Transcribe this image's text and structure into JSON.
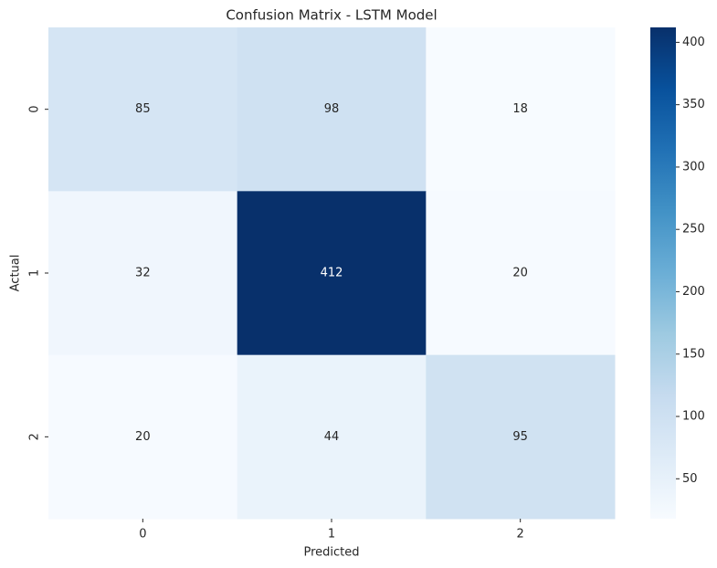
{
  "chart_data": {
    "type": "heatmap",
    "title": "Confusion Matrix - LSTM Model",
    "xlabel": "Predicted",
    "ylabel": "Actual",
    "x_categories": [
      "0",
      "1",
      "2"
    ],
    "y_categories": [
      "0",
      "1",
      "2"
    ],
    "values": [
      [
        85,
        98,
        18
      ],
      [
        32,
        412,
        20
      ],
      [
        20,
        44,
        95
      ]
    ],
    "colormap": [
      "#f7fbff",
      "#deebf7",
      "#c6dbef",
      "#9ecae1",
      "#6baed6",
      "#4292c6",
      "#2171b5",
      "#08519c",
      "#08306b"
    ],
    "zlim": [
      18,
      412
    ],
    "zticks": [
      50,
      100,
      150,
      200,
      250,
      300,
      350,
      400
    ]
  }
}
